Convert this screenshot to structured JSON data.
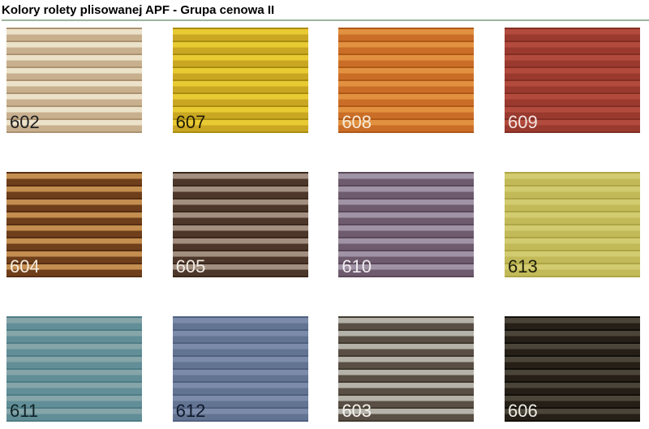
{
  "page": {
    "title": "Kolory rolety plisowanej APF - Grupa cenowa II",
    "divider_color": "#9db39d",
    "background_color": "#ffffff"
  },
  "swatches": [
    {
      "code": "602",
      "stripe_light": "#ece2ca",
      "stripe_dark": "#c8b08f",
      "stripe_edge": "#ab9271",
      "label_color": "#1e1e1e"
    },
    {
      "code": "607",
      "stripe_light": "#e8ca33",
      "stripe_dark": "#caa722",
      "stripe_edge": "#a98d10",
      "label_color": "#1f1b06"
    },
    {
      "code": "608",
      "stripe_light": "#e19140",
      "stripe_dark": "#ca6e27",
      "stripe_edge": "#b05816",
      "label_color": "#f6ecdc"
    },
    {
      "code": "609",
      "stripe_light": "#b24b3d",
      "stripe_dark": "#9a392e",
      "stripe_edge": "#842e24",
      "label_color": "#f3e6e2"
    },
    {
      "code": "604",
      "stripe_light": "#c38e4f",
      "stripe_dark": "#6f3f1b",
      "stripe_edge": "#572e12",
      "label_color": "#f5ecdf"
    },
    {
      "code": "605",
      "stripe_light": "#a38f80",
      "stripe_dark": "#4d372a",
      "stripe_edge": "#3a281d",
      "label_color": "#f2ece6"
    },
    {
      "code": "610",
      "stripe_light": "#a093a5",
      "stripe_dark": "#6e5b6e",
      "stripe_edge": "#5a485a",
      "label_color": "#f1edf1"
    },
    {
      "code": "613",
      "stripe_light": "#d2cb6f",
      "stripe_dark": "#c2ba58",
      "stripe_edge": "#aea646",
      "label_color": "#1f1f0c"
    },
    {
      "code": "611",
      "stripe_light": "#85a5a9",
      "stripe_dark": "#618e97",
      "stripe_edge": "#4f7d87",
      "label_color": "#0f2327"
    },
    {
      "code": "612",
      "stripe_light": "#7b8ba9",
      "stripe_dark": "#637493",
      "stripe_edge": "#4f6080",
      "label_color": "#10192b"
    },
    {
      "code": "603",
      "stripe_light": "#b5b2aa",
      "stripe_dark": "#594f44",
      "stripe_edge": "#423a30",
      "label_color": "#f4f2ec"
    },
    {
      "code": "606",
      "stripe_light": "#4b4539",
      "stripe_dark": "#251f18",
      "stripe_edge": "#120f0a",
      "label_color": "#eeebe5"
    }
  ]
}
